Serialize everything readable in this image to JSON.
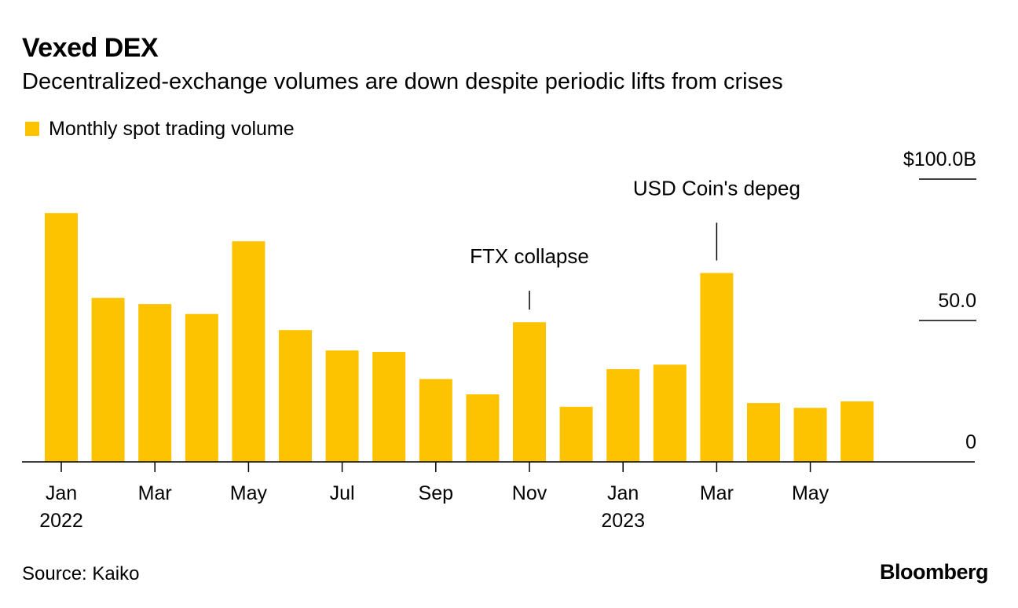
{
  "colors": {
    "bar": "#FDC300",
    "text": "#000000",
    "background": "#ffffff"
  },
  "chart_data": {
    "type": "bar",
    "title": "Vexed DEX",
    "subtitle": "Decentralized-exchange volumes are down despite periodic lifts from crises",
    "legend": [
      "Monthly spot trading volume"
    ],
    "legend_position": "top-left",
    "xlabel": "",
    "ylabel": "",
    "ylim": [
      0,
      100
    ],
    "y_ticks": [
      {
        "value": 0,
        "label": "0"
      },
      {
        "value": 50,
        "label": "50.0"
      },
      {
        "value": 100,
        "label": "$100.0B"
      }
    ],
    "grid": false,
    "y_axis_position": "right",
    "categories": [
      "Jan 2022",
      "Feb 2022",
      "Mar 2022",
      "Apr 2022",
      "May 2022",
      "Jun 2022",
      "Jul 2022",
      "Aug 2022",
      "Sep 2022",
      "Oct 2022",
      "Nov 2022",
      "Dec 2022",
      "Jan 2023",
      "Feb 2023",
      "Mar 2023",
      "Apr 2023",
      "May 2023",
      "Jun 2023"
    ],
    "series": [
      {
        "name": "Monthly spot trading volume",
        "values": [
          88,
          58,
          55.8,
          52.3,
          78,
          46.6,
          39.4,
          38.9,
          29.3,
          23.9,
          49.4,
          19.5,
          32.8,
          34.4,
          66.8,
          20.8,
          19.1,
          21.4
        ]
      }
    ],
    "x_ticks": [
      {
        "index": 0,
        "label": "Jan",
        "year": "2022"
      },
      {
        "index": 2,
        "label": "Mar",
        "year": ""
      },
      {
        "index": 4,
        "label": "May",
        "year": ""
      },
      {
        "index": 6,
        "label": "Jul",
        "year": ""
      },
      {
        "index": 8,
        "label": "Sep",
        "year": ""
      },
      {
        "index": 10,
        "label": "Nov",
        "year": ""
      },
      {
        "index": 12,
        "label": "Jan",
        "year": "2023"
      },
      {
        "index": 14,
        "label": "Mar",
        "year": ""
      },
      {
        "index": 16,
        "label": "May",
        "year": ""
      }
    ],
    "annotations": [
      {
        "index": 10,
        "text": "FTX collapse"
      },
      {
        "index": 14,
        "text": "USD Coin's depeg"
      }
    ]
  },
  "footer": {
    "source": "Source: Kaiko",
    "brand": "Bloomberg"
  }
}
